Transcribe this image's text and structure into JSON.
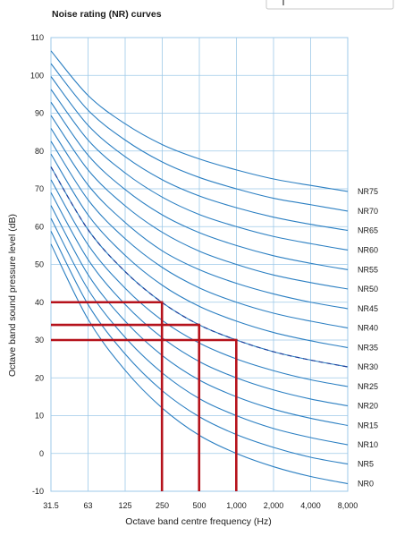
{
  "chart_data": {
    "type": "line",
    "title": "Noise rating (NR) curves",
    "xlabel": "Octave band centre frequency (Hz)",
    "ylabel": "Octave band sound pressure level (dB)",
    "x_scale": "log",
    "x_ticks": [
      31.5,
      63,
      125,
      250,
      500,
      1000,
      2000,
      4000,
      8000
    ],
    "x_tick_labels": [
      "31.5",
      "63",
      "125",
      "250",
      "500",
      "1,000",
      "2,000",
      "4,000",
      "8,000"
    ],
    "ylim": [
      -10,
      110
    ],
    "y_ticks": [
      -10,
      0,
      10,
      20,
      30,
      40,
      50,
      60,
      70,
      80,
      90,
      100,
      110
    ],
    "grid": true,
    "colors": {
      "curve": "#2b7fc2",
      "grid": "#9ec9e8",
      "highlight": "#b5121b"
    },
    "series": [
      {
        "name": "NR0",
        "values": [
          55.4,
          35.5,
          22.0,
          12.0,
          4.8,
          0.0,
          -3.5,
          -6.1,
          -8.0
        ]
      },
      {
        "name": "NR5",
        "values": [
          58.8,
          39.4,
          26.3,
          16.6,
          9.7,
          5.0,
          1.6,
          -1.0,
          -2.8
        ]
      },
      {
        "name": "NR10",
        "values": [
          62.2,
          43.4,
          30.7,
          21.3,
          14.5,
          10.0,
          6.6,
          4.2,
          2.3
        ]
      },
      {
        "name": "NR15",
        "values": [
          65.6,
          47.3,
          35.0,
          25.9,
          19.4,
          15.0,
          11.7,
          9.3,
          7.4
        ]
      },
      {
        "name": "NR20",
        "values": [
          69.0,
          51.3,
          39.4,
          30.6,
          24.3,
          20.0,
          16.8,
          14.4,
          12.6
        ]
      },
      {
        "name": "NR25",
        "values": [
          72.4,
          55.2,
          43.7,
          35.2,
          29.2,
          25.0,
          21.9,
          19.5,
          17.7
        ]
      },
      {
        "name": "NR30",
        "values": [
          75.8,
          59.2,
          48.1,
          39.9,
          34.0,
          30.0,
          26.9,
          24.7,
          22.9
        ]
      },
      {
        "name": "NR35",
        "values": [
          79.2,
          63.1,
          52.4,
          44.5,
          38.9,
          35.0,
          32.0,
          29.8,
          28.0
        ]
      },
      {
        "name": "NR40",
        "values": [
          82.6,
          67.1,
          56.8,
          49.2,
          43.8,
          40.0,
          37.1,
          35.0,
          33.2
        ]
      },
      {
        "name": "NR45",
        "values": [
          86.0,
          71.0,
          61.1,
          53.6,
          48.6,
          45.0,
          42.2,
          40.0,
          38.3
        ]
      },
      {
        "name": "NR50",
        "values": [
          89.4,
          75.0,
          65.5,
          58.5,
          53.5,
          50.0,
          47.2,
          45.2,
          43.5
        ]
      },
      {
        "name": "NR55",
        "values": [
          92.9,
          78.9,
          69.8,
          63.1,
          58.4,
          55.0,
          52.3,
          50.3,
          48.6
        ]
      },
      {
        "name": "NR60",
        "values": [
          96.3,
          82.9,
          74.2,
          67.8,
          63.2,
          60.0,
          57.4,
          55.5,
          53.8
        ]
      },
      {
        "name": "NR65",
        "values": [
          99.7,
          86.8,
          78.5,
          72.4,
          68.1,
          65.0,
          62.5,
          60.6,
          59.0
        ]
      },
      {
        "name": "NR70",
        "values": [
          103.1,
          90.8,
          82.9,
          77.1,
          73.0,
          70.0,
          67.5,
          65.8,
          64.1
        ]
      },
      {
        "name": "NR75",
        "values": [
          106.5,
          94.7,
          87.2,
          81.7,
          77.9,
          75.0,
          72.6,
          70.9,
          69.3
        ]
      }
    ],
    "dashed_series": {
      "values": [
        75.8,
        59.2,
        48.1,
        39.9,
        34.0,
        30.0,
        26.9,
        24.7,
        22.9
      ]
    },
    "highlight_lines": [
      {
        "freq": 250,
        "level": 40
      },
      {
        "freq": 500,
        "level": 34
      },
      {
        "freq": 1000,
        "level": 30
      }
    ],
    "labels": {
      "NR0": "NR0",
      "NR5": "NR5",
      "NR10": "NR10",
      "NR15": "NR15",
      "NR20": "NR20",
      "NR25": "NR25",
      "NR30": "NR30",
      "NR35": "NR35",
      "NR40": "NR40",
      "NR45": "NR45",
      "NR50": "NR50",
      "NR55": "NR55",
      "NR60": "NR60",
      "NR65": "NR65",
      "NR70": "NR70",
      "NR75": "NR75"
    }
  }
}
